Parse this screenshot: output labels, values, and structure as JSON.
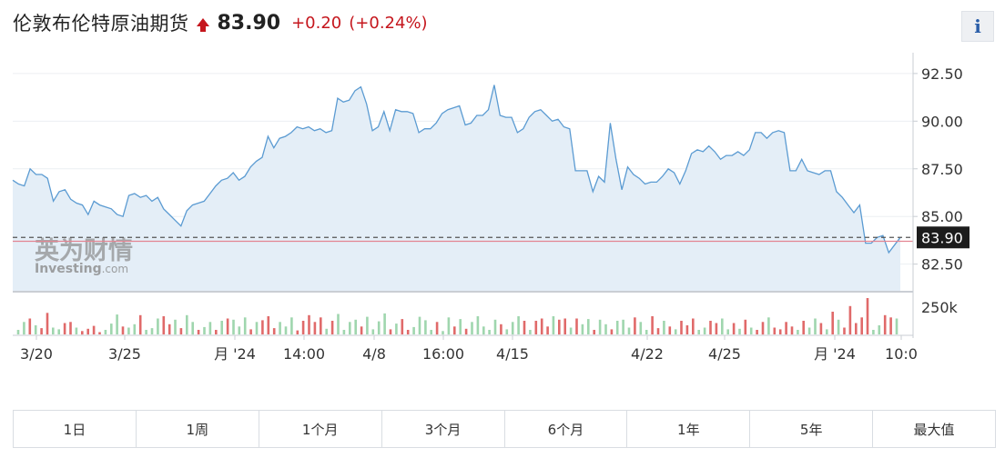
{
  "header": {
    "title": "伦敦布伦特原油期货",
    "price": "83.90",
    "change": "+0.20",
    "change_pct": "(+0.24%)",
    "up_color": "#c5161d"
  },
  "info_button": {
    "label": "i"
  },
  "watermark": {
    "cn": "英为财情",
    "en": "Investing",
    "suffix": ".com"
  },
  "chart_data": {
    "type": "area",
    "y_axis": {
      "ticks": [
        "92.50",
        "90.00",
        "87.50",
        "85.00",
        "82.50"
      ],
      "range": [
        81.1,
        93.4
      ],
      "position": "right"
    },
    "current_price_label": "83.90",
    "current_price_value": 83.9,
    "reference_line_value": 83.7,
    "x_tick_labels": [
      "3/20",
      "3/25",
      "月 '24",
      "14:00",
      "4/8",
      "16:00",
      "4/15",
      "4/22",
      "4/25",
      "月 '24",
      "10:0"
    ],
    "volume_axis_label": "250k",
    "price_series": [
      86.9,
      86.7,
      86.6,
      87.5,
      87.2,
      87.2,
      87.0,
      85.8,
      86.3,
      86.4,
      85.9,
      85.7,
      85.6,
      85.1,
      85.8,
      85.6,
      85.5,
      85.4,
      85.1,
      85.0,
      86.1,
      86.2,
      86.0,
      86.1,
      85.8,
      86.0,
      85.4,
      85.1,
      84.8,
      84.5,
      85.3,
      85.6,
      85.7,
      85.8,
      86.2,
      86.6,
      86.9,
      87.0,
      87.3,
      86.9,
      87.1,
      87.6,
      87.9,
      88.1,
      89.2,
      88.6,
      89.1,
      89.2,
      89.4,
      89.7,
      89.6,
      89.7,
      89.5,
      89.6,
      89.4,
      89.5,
      91.2,
      91.0,
      91.1,
      91.6,
      91.8,
      90.9,
      89.5,
      89.7,
      90.5,
      89.5,
      90.6,
      90.5,
      90.5,
      90.4,
      89.4,
      89.6,
      89.6,
      89.9,
      90.4,
      90.6,
      90.7,
      90.8,
      89.8,
      89.9,
      90.3,
      90.3,
      90.6,
      91.9,
      90.3,
      90.2,
      90.2,
      89.4,
      89.6,
      90.2,
      90.5,
      90.6,
      90.3,
      90.0,
      90.1,
      89.7,
      89.6,
      87.4,
      87.4,
      87.4,
      86.3,
      87.1,
      86.8,
      89.9,
      88.0,
      86.4,
      87.6,
      87.2,
      87.0,
      86.7,
      86.8,
      86.8,
      87.1,
      87.5,
      87.3,
      86.7,
      87.4,
      88.3,
      88.5,
      88.4,
      88.7,
      88.4,
      88.0,
      88.2,
      88.2,
      88.4,
      88.2,
      88.5,
      89.4,
      89.4,
      89.1,
      89.4,
      89.5,
      89.4,
      87.4,
      87.4,
      88.0,
      87.4,
      87.3,
      87.2,
      87.4,
      87.4,
      86.3,
      86.0,
      85.6,
      85.2,
      85.6,
      83.6,
      83.6,
      83.9,
      84.0,
      83.1,
      83.5,
      83.9
    ],
    "volume_series": [
      {
        "value": 40,
        "dir": "up"
      },
      {
        "value": 110,
        "dir": "up"
      },
      {
        "value": 140,
        "dir": "down"
      },
      {
        "value": 80,
        "dir": "up"
      },
      {
        "value": 55,
        "dir": "down"
      },
      {
        "value": 190,
        "dir": "down"
      },
      {
        "value": 60,
        "dir": "up"
      },
      {
        "value": 45,
        "dir": "up"
      },
      {
        "value": 100,
        "dir": "down"
      },
      {
        "value": 110,
        "dir": "down"
      },
      {
        "value": 60,
        "dir": "up"
      },
      {
        "value": 30,
        "dir": "down"
      },
      {
        "value": 50,
        "dir": "down"
      },
      {
        "value": 75,
        "dir": "down"
      },
      {
        "value": 20,
        "dir": "down"
      },
      {
        "value": 40,
        "dir": "up"
      },
      {
        "value": 95,
        "dir": "up"
      },
      {
        "value": 175,
        "dir": "up"
      },
      {
        "value": 70,
        "dir": "down"
      },
      {
        "value": 60,
        "dir": "up"
      },
      {
        "value": 90,
        "dir": "up"
      },
      {
        "value": 170,
        "dir": "down"
      },
      {
        "value": 40,
        "dir": "up"
      },
      {
        "value": 55,
        "dir": "up"
      },
      {
        "value": 140,
        "dir": "up"
      },
      {
        "value": 160,
        "dir": "down"
      },
      {
        "value": 90,
        "dir": "down"
      },
      {
        "value": 130,
        "dir": "up"
      },
      {
        "value": 55,
        "dir": "down"
      },
      {
        "value": 170,
        "dir": "up"
      },
      {
        "value": 110,
        "dir": "up"
      },
      {
        "value": 40,
        "dir": "down"
      },
      {
        "value": 65,
        "dir": "up"
      },
      {
        "value": 110,
        "dir": "up"
      },
      {
        "value": 40,
        "dir": "down"
      },
      {
        "value": 120,
        "dir": "up"
      },
      {
        "value": 140,
        "dir": "down"
      },
      {
        "value": 130,
        "dir": "up"
      },
      {
        "value": 70,
        "dir": "up"
      },
      {
        "value": 150,
        "dir": "up"
      },
      {
        "value": 45,
        "dir": "down"
      },
      {
        "value": 110,
        "dir": "up"
      },
      {
        "value": 125,
        "dir": "down"
      },
      {
        "value": 160,
        "dir": "down"
      },
      {
        "value": 55,
        "dir": "down"
      },
      {
        "value": 110,
        "dir": "up"
      },
      {
        "value": 70,
        "dir": "up"
      },
      {
        "value": 150,
        "dir": "up"
      },
      {
        "value": 35,
        "dir": "down"
      },
      {
        "value": 120,
        "dir": "down"
      },
      {
        "value": 170,
        "dir": "down"
      },
      {
        "value": 110,
        "dir": "down"
      },
      {
        "value": 150,
        "dir": "down"
      },
      {
        "value": 50,
        "dir": "up"
      },
      {
        "value": 120,
        "dir": "down"
      },
      {
        "value": 180,
        "dir": "up"
      },
      {
        "value": 40,
        "dir": "up"
      },
      {
        "value": 110,
        "dir": "up"
      },
      {
        "value": 130,
        "dir": "up"
      },
      {
        "value": 70,
        "dir": "down"
      },
      {
        "value": 155,
        "dir": "up"
      },
      {
        "value": 45,
        "dir": "up"
      },
      {
        "value": 115,
        "dir": "up"
      },
      {
        "value": 185,
        "dir": "up"
      },
      {
        "value": 45,
        "dir": "down"
      },
      {
        "value": 95,
        "dir": "up"
      },
      {
        "value": 135,
        "dir": "down"
      },
      {
        "value": 40,
        "dir": "down"
      },
      {
        "value": 65,
        "dir": "up"
      },
      {
        "value": 155,
        "dir": "up"
      },
      {
        "value": 125,
        "dir": "up"
      },
      {
        "value": 40,
        "dir": "up"
      },
      {
        "value": 110,
        "dir": "down"
      },
      {
        "value": 30,
        "dir": "up"
      },
      {
        "value": 150,
        "dir": "up"
      },
      {
        "value": 70,
        "dir": "down"
      },
      {
        "value": 135,
        "dir": "up"
      },
      {
        "value": 50,
        "dir": "down"
      },
      {
        "value": 110,
        "dir": "up"
      },
      {
        "value": 160,
        "dir": "up"
      },
      {
        "value": 70,
        "dir": "up"
      },
      {
        "value": 40,
        "dir": "up"
      },
      {
        "value": 130,
        "dir": "up"
      },
      {
        "value": 90,
        "dir": "down"
      },
      {
        "value": 45,
        "dir": "up"
      },
      {
        "value": 110,
        "dir": "up"
      },
      {
        "value": 160,
        "dir": "up"
      },
      {
        "value": 120,
        "dir": "down"
      },
      {
        "value": 40,
        "dir": "up"
      },
      {
        "value": 120,
        "dir": "down"
      },
      {
        "value": 140,
        "dir": "down"
      },
      {
        "value": 70,
        "dir": "down"
      },
      {
        "value": 160,
        "dir": "up"
      },
      {
        "value": 130,
        "dir": "down"
      },
      {
        "value": 140,
        "dir": "down"
      },
      {
        "value": 60,
        "dir": "up"
      },
      {
        "value": 140,
        "dir": "down"
      },
      {
        "value": 90,
        "dir": "up"
      },
      {
        "value": 135,
        "dir": "up"
      },
      {
        "value": 40,
        "dir": "down"
      },
      {
        "value": 130,
        "dir": "up"
      },
      {
        "value": 90,
        "dir": "up"
      },
      {
        "value": 45,
        "dir": "down"
      },
      {
        "value": 120,
        "dir": "up"
      },
      {
        "value": 130,
        "dir": "up"
      },
      {
        "value": 60,
        "dir": "up"
      },
      {
        "value": 150,
        "dir": "down"
      },
      {
        "value": 110,
        "dir": "up"
      },
      {
        "value": 40,
        "dir": "up"
      },
      {
        "value": 160,
        "dir": "down"
      },
      {
        "value": 55,
        "dir": "down"
      },
      {
        "value": 120,
        "dir": "up"
      },
      {
        "value": 70,
        "dir": "down"
      },
      {
        "value": 45,
        "dir": "up"
      },
      {
        "value": 120,
        "dir": "down"
      },
      {
        "value": 80,
        "dir": "down"
      },
      {
        "value": 140,
        "dir": "down"
      },
      {
        "value": 40,
        "dir": "up"
      },
      {
        "value": 60,
        "dir": "up"
      },
      {
        "value": 120,
        "dir": "down"
      },
      {
        "value": 100,
        "dir": "down"
      },
      {
        "value": 140,
        "dir": "up"
      },
      {
        "value": 45,
        "dir": "up"
      },
      {
        "value": 100,
        "dir": "down"
      },
      {
        "value": 50,
        "dir": "up"
      },
      {
        "value": 130,
        "dir": "down"
      },
      {
        "value": 60,
        "dir": "up"
      },
      {
        "value": 40,
        "dir": "down"
      },
      {
        "value": 110,
        "dir": "down"
      },
      {
        "value": 150,
        "dir": "up"
      },
      {
        "value": 60,
        "dir": "down"
      },
      {
        "value": 45,
        "dir": "down"
      },
      {
        "value": 110,
        "dir": "down"
      },
      {
        "value": 70,
        "dir": "down"
      },
      {
        "value": 40,
        "dir": "up"
      },
      {
        "value": 120,
        "dir": "down"
      },
      {
        "value": 60,
        "dir": "up"
      },
      {
        "value": 140,
        "dir": "up"
      },
      {
        "value": 100,
        "dir": "down"
      },
      {
        "value": 45,
        "dir": "up"
      },
      {
        "value": 200,
        "dir": "down"
      },
      {
        "value": 130,
        "dir": "up"
      },
      {
        "value": 60,
        "dir": "down"
      },
      {
        "value": 250,
        "dir": "down"
      },
      {
        "value": 100,
        "dir": "down"
      },
      {
        "value": 150,
        "dir": "down"
      },
      {
        "value": 320,
        "dir": "down"
      },
      {
        "value": 40,
        "dir": "up"
      },
      {
        "value": 80,
        "dir": "up"
      },
      {
        "value": 170,
        "dir": "down"
      },
      {
        "value": 150,
        "dir": "down"
      },
      {
        "value": 140,
        "dir": "up"
      }
    ],
    "colors": {
      "line": "#5b9bd2",
      "area_fill": "#e4eef7",
      "volume_up": "#9fd6ae",
      "volume_down": "#e06a6a",
      "reference_line": "#e38592",
      "current_price_line": "#555555",
      "current_price_tag_bg": "#1c1c1c"
    }
  },
  "periods": {
    "tabs": [
      "1日",
      "1周",
      "1个月",
      "3个月",
      "6个月",
      "1年",
      "5年",
      "最大值"
    ]
  }
}
